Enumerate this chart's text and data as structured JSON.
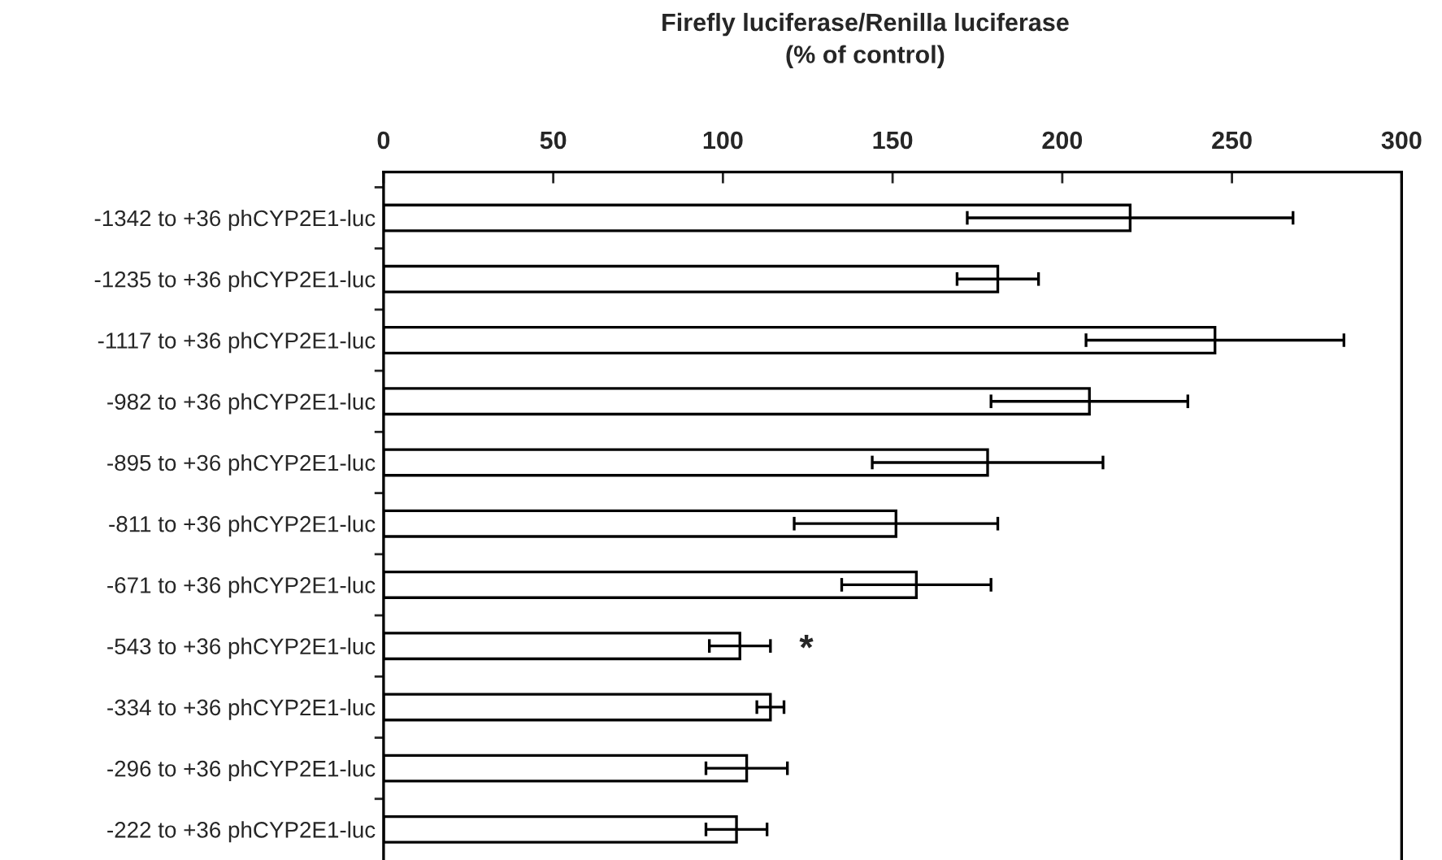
{
  "chart_data": {
    "type": "bar",
    "orientation": "horizontal",
    "title": "Firefly luciferase/Renilla luciferase\n(% of control)",
    "categories": [
      "-1342 to +36 phCYP2E1-luc",
      "-1235 to +36 phCYP2E1-luc",
      "-1117 to +36 phCYP2E1-luc",
      "-982 to +36 phCYP2E1-luc",
      "-895 to +36 phCYP2E1-luc",
      "-811 to +36 phCYP2E1-luc",
      "-671 to +36 phCYP2E1-luc",
      "-543 to +36 phCYP2E1-luc",
      "-334 to +36 phCYP2E1-luc",
      "-296 to +36 phCYP2E1-luc",
      "-222 to +36 phCYP2E1-luc"
    ],
    "values": [
      220,
      181,
      245,
      208,
      178,
      151,
      157,
      105,
      114,
      107,
      104
    ],
    "errors": [
      48,
      12,
      38,
      29,
      34,
      30,
      22,
      9,
      4,
      12,
      9
    ],
    "color": "#ffffff",
    "xlim": [
      0,
      300
    ],
    "xticks": [
      0,
      50,
      100,
      150,
      200,
      250,
      300
    ],
    "annotations": [
      "*"
    ],
    "grid": false,
    "legend": false
  }
}
